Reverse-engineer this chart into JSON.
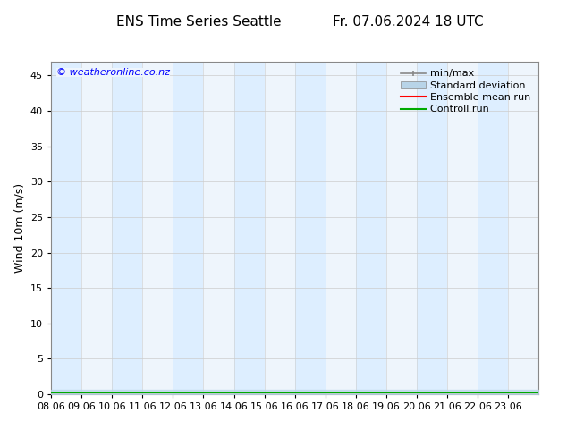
{
  "title_left": "ENS Time Series Seattle",
  "title_right": "Fr. 07.06.2024 18 UTC",
  "ylabel": "Wind 10m (m/s)",
  "watermark": "© weatheronline.co.nz",
  "ylim": [
    0,
    47
  ],
  "yticks": [
    0,
    5,
    10,
    15,
    20,
    25,
    30,
    35,
    40,
    45
  ],
  "xtick_labels": [
    "08.06",
    "09.06",
    "10.06",
    "11.06",
    "12.06",
    "13.06",
    "14.06",
    "15.06",
    "16.06",
    "17.06",
    "18.06",
    "19.06",
    "20.06",
    "21.06",
    "22.06",
    "23.06"
  ],
  "num_days": 16,
  "shaded_bands": [
    0,
    2,
    4,
    6,
    8,
    10,
    12,
    14
  ],
  "band_color": "#ddeeff",
  "background_color": "#ffffff",
  "plot_bg_color": "#eef5fc",
  "legend_items": [
    {
      "label": "min/max",
      "color": "#aaaaaa",
      "type": "hbar"
    },
    {
      "label": "Standard deviation",
      "color": "#b8d4e8",
      "type": "fill"
    },
    {
      "label": "Ensemble mean run",
      "color": "#ff0000",
      "type": "line"
    },
    {
      "label": "Controll run",
      "color": "#00aa00",
      "type": "line"
    }
  ],
  "title_fontsize": 11,
  "tick_fontsize": 8,
  "legend_fontsize": 8,
  "ylabel_fontsize": 9
}
